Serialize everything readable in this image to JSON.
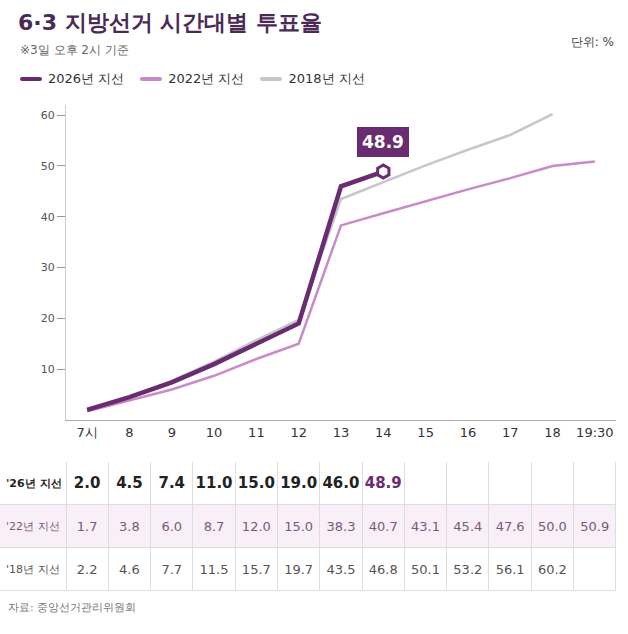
{
  "chart_data": {
    "type": "line",
    "title": "6·3 지방선거 시간대별 투표율",
    "subtitle": "※3일 오후 2시 기준",
    "unit_label": "단위: %",
    "source": "자료: 중앙선거관리위원회",
    "categories": [
      "7시",
      "8",
      "9",
      "10",
      "11",
      "12",
      "13",
      "14",
      "15",
      "16",
      "17",
      "18",
      "19:30"
    ],
    "series": [
      {
        "name": "2026년 지선",
        "row_label": "'26년 지선",
        "color": "#6a2c70",
        "values": [
          2.0,
          4.5,
          7.4,
          11.0,
          15.0,
          19.0,
          46.0,
          48.9,
          null,
          null,
          null,
          null,
          null
        ],
        "value_labels": [
          "2.0",
          "4.5",
          "7.4",
          "11.0",
          "15.0",
          "19.0",
          "46.0",
          "48.9",
          null,
          null,
          null,
          null,
          null
        ]
      },
      {
        "name": "2022년 지선",
        "row_label": "'22년 지선",
        "color": "#c88bc6",
        "values": [
          1.7,
          3.8,
          6.0,
          8.7,
          12.0,
          15.0,
          38.3,
          40.7,
          43.1,
          45.4,
          47.6,
          50.0,
          50.9
        ],
        "value_labels": [
          "1.7",
          "3.8",
          "6.0",
          "8.7",
          "12.0",
          "15.0",
          "38.3",
          "40.7",
          "43.1",
          "45.4",
          "47.6",
          "50.0",
          "50.9"
        ]
      },
      {
        "name": "2018년 지선",
        "row_label": "'18년 지선",
        "color": "#c9c5cd",
        "values": [
          2.2,
          4.6,
          7.7,
          11.5,
          15.7,
          19.7,
          43.5,
          46.8,
          50.1,
          53.2,
          56.1,
          60.2,
          null
        ],
        "value_labels": [
          "2.2",
          "4.6",
          "7.7",
          "11.5",
          "15.7",
          "19.7",
          "43.5",
          "46.8",
          "50.1",
          "53.2",
          "56.1",
          "60.2",
          null
        ]
      }
    ],
    "ylim": [
      0,
      62
    ],
    "yticks": [
      10,
      20,
      30,
      40,
      50,
      60
    ],
    "grid": false,
    "legend": "top left",
    "annotations": [
      {
        "text": "48.9",
        "x": "14",
        "y": 48.9
      }
    ]
  }
}
